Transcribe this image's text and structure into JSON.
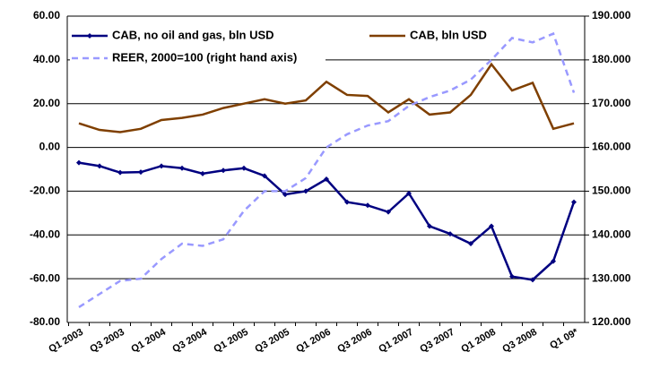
{
  "chart_data": {
    "type": "line",
    "categories": [
      "Q1 2003",
      null,
      "Q3 2003",
      null,
      "Q1 2004",
      null,
      "Q3 2004",
      null,
      "Q1 2005",
      null,
      "Q3 2005",
      null,
      "Q1 2006",
      null,
      "Q3 2006",
      null,
      "Q1 2007",
      null,
      "Q3 2007",
      null,
      "Q1 2008",
      null,
      "Q3 2008",
      null,
      "Q1 09*"
    ],
    "ylim": [
      -80,
      60
    ],
    "yticks": [
      {
        "value": -80,
        "label": "-80.00"
      },
      {
        "value": -60,
        "label": "-60.00"
      },
      {
        "value": -40,
        "label": "-40.00"
      },
      {
        "value": -20,
        "label": "-20.00"
      },
      {
        "value": 0,
        "label": "0.00"
      },
      {
        "value": 20,
        "label": "20.00"
      },
      {
        "value": 40,
        "label": "40.00"
      },
      {
        "value": 60,
        "label": "60.00"
      }
    ],
    "y2lim": [
      120,
      190
    ],
    "y2ticks": [
      {
        "value": 120,
        "label": "120.000"
      },
      {
        "value": 130,
        "label": "130.000"
      },
      {
        "value": 140,
        "label": "140.000"
      },
      {
        "value": 150,
        "label": "150.000"
      },
      {
        "value": 160,
        "label": "160.000"
      },
      {
        "value": 170,
        "label": "170.000"
      },
      {
        "value": 180,
        "label": "180.000"
      },
      {
        "value": 190,
        "label": "190.000"
      }
    ],
    "grid": true,
    "series": [
      {
        "name": "CAB, no oil and gas, bln USD",
        "color": "#000080",
        "marker": "diamond",
        "values": [
          -7,
          -8.5,
          -11.5,
          -11.3,
          -8.5,
          -9.5,
          -12,
          -10.5,
          -9.5,
          -13,
          -21.5,
          -20,
          -14.5,
          -25,
          -26.5,
          -29.5,
          -21,
          -36,
          -39.5,
          -44,
          -36,
          -59,
          -60.5,
          -52,
          -25
        ]
      },
      {
        "name": "CAB, bln USD",
        "color": "#7f3f00",
        "values": [
          11,
          8,
          7,
          8.5,
          12.5,
          13.5,
          15,
          18,
          20,
          22,
          20,
          21.5,
          30,
          24,
          23.5,
          16,
          22,
          15,
          16,
          24,
          38,
          26,
          29.5,
          8.5,
          11
        ]
      },
      {
        "name": "REER, 2000=100 (right hand axis)",
        "color": "#9999ff",
        "dashed": true,
        "axis": "y2",
        "values": [
          123.5,
          126.5,
          129.5,
          130,
          134.5,
          138,
          137.5,
          139,
          145.5,
          150,
          150,
          153,
          160,
          163,
          165,
          166,
          169.5,
          171.5,
          173,
          175.5,
          180,
          185,
          184,
          186,
          172.5
        ]
      }
    ]
  }
}
